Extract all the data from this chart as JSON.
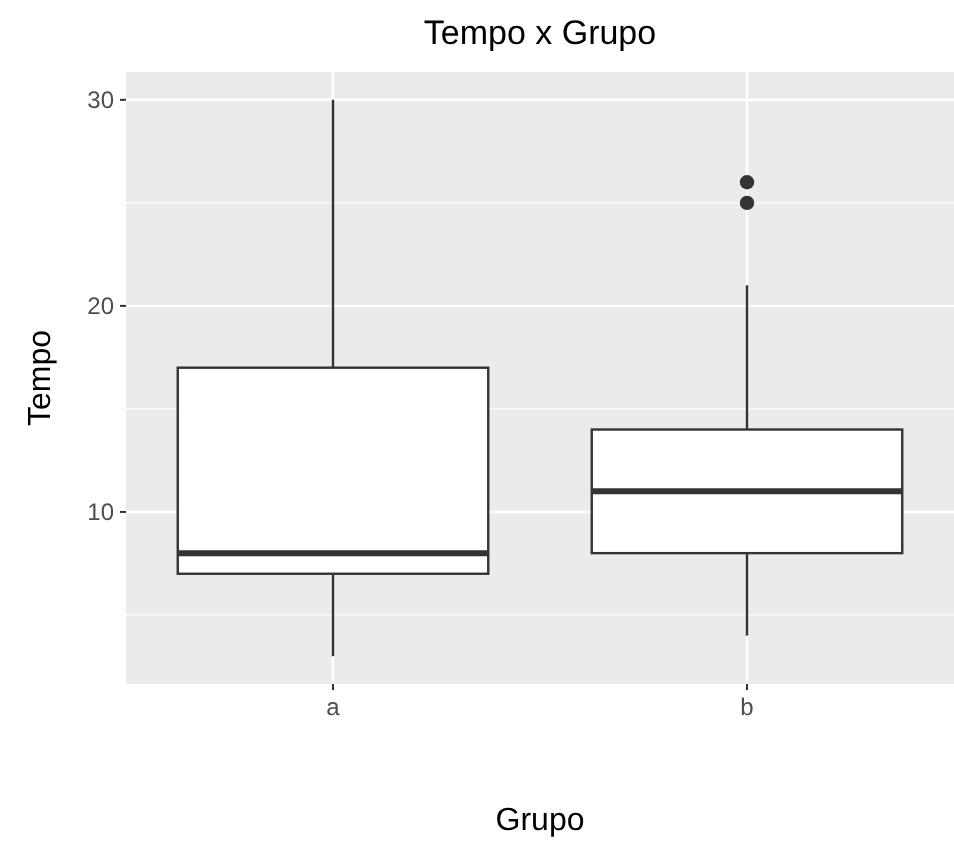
{
  "chart_data": {
    "type": "box",
    "title": "Tempo x Grupo",
    "xlabel": "Grupo",
    "ylabel": "Tempo",
    "categories": [
      "a",
      "b"
    ],
    "boxes": [
      {
        "low": 3,
        "q1": 7,
        "median": 8,
        "q3": 17,
        "high": 30
      },
      {
        "low": 4,
        "q1": 8,
        "median": 11,
        "q3": 14,
        "high": 21,
        "outliers": [
          25,
          26
        ]
      }
    ],
    "ylim": [
      1.65,
      31.35
    ],
    "yticks": [
      10,
      20,
      30
    ],
    "grid": true
  }
}
